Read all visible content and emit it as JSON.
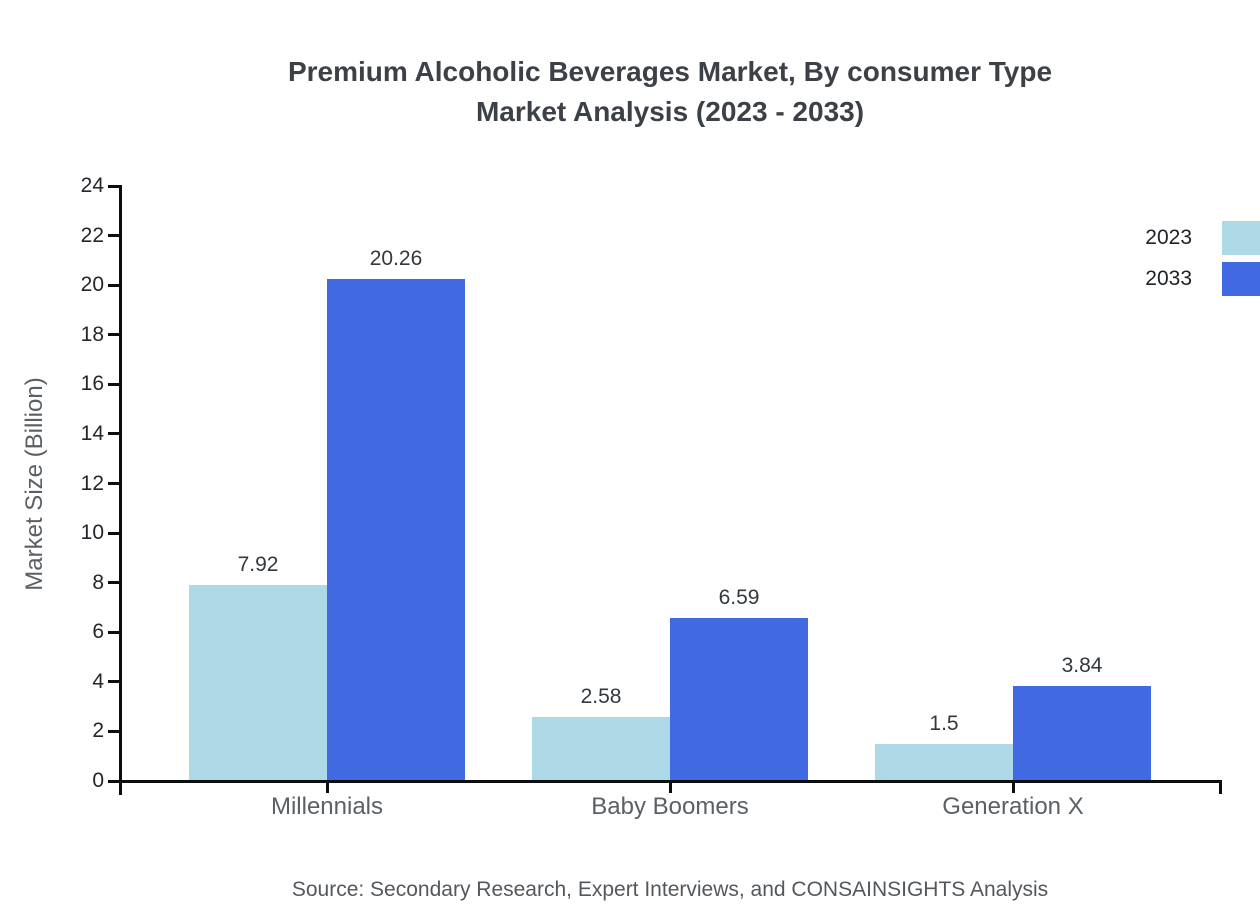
{
  "title": {
    "line1": "Premium Alcoholic Beverages Market, By consumer Type",
    "line2": "Market Analysis (2023 - 2033)"
  },
  "legend": [
    {
      "label": "2023",
      "color": "#ADD8E6"
    },
    {
      "label": "2033",
      "color": "#4169E1"
    }
  ],
  "axes": {
    "y_label": "Market Size (Billion)"
  },
  "source": "Source: Secondary Research, Expert Interviews, and CONSAINSIGHTS Analysis",
  "chart_data": {
    "type": "bar",
    "title": "Premium Alcoholic Beverages Market, By consumer Type Market Analysis (2023 - 2033)",
    "categories": [
      "Millennials",
      "Baby Boomers",
      "Generation X"
    ],
    "series": [
      {
        "name": "2023",
        "color": "#ADD8E6",
        "values": [
          7.92,
          2.58,
          1.5
        ]
      },
      {
        "name": "2033",
        "color": "#4169E1",
        "values": [
          20.26,
          6.59,
          3.84
        ]
      }
    ],
    "xlabel": "",
    "ylabel": "Market Size (Billion)",
    "ylim": [
      0,
      24
    ],
    "yticks": [
      0,
      2,
      4,
      6,
      8,
      10,
      12,
      14,
      16,
      18,
      20,
      22,
      24
    ],
    "grid": false,
    "legend_position": "top-right",
    "data_labels": true,
    "source_note": "Source: Secondary Research, Expert Interviews, and CONSAINSIGHTS Analysis"
  }
}
